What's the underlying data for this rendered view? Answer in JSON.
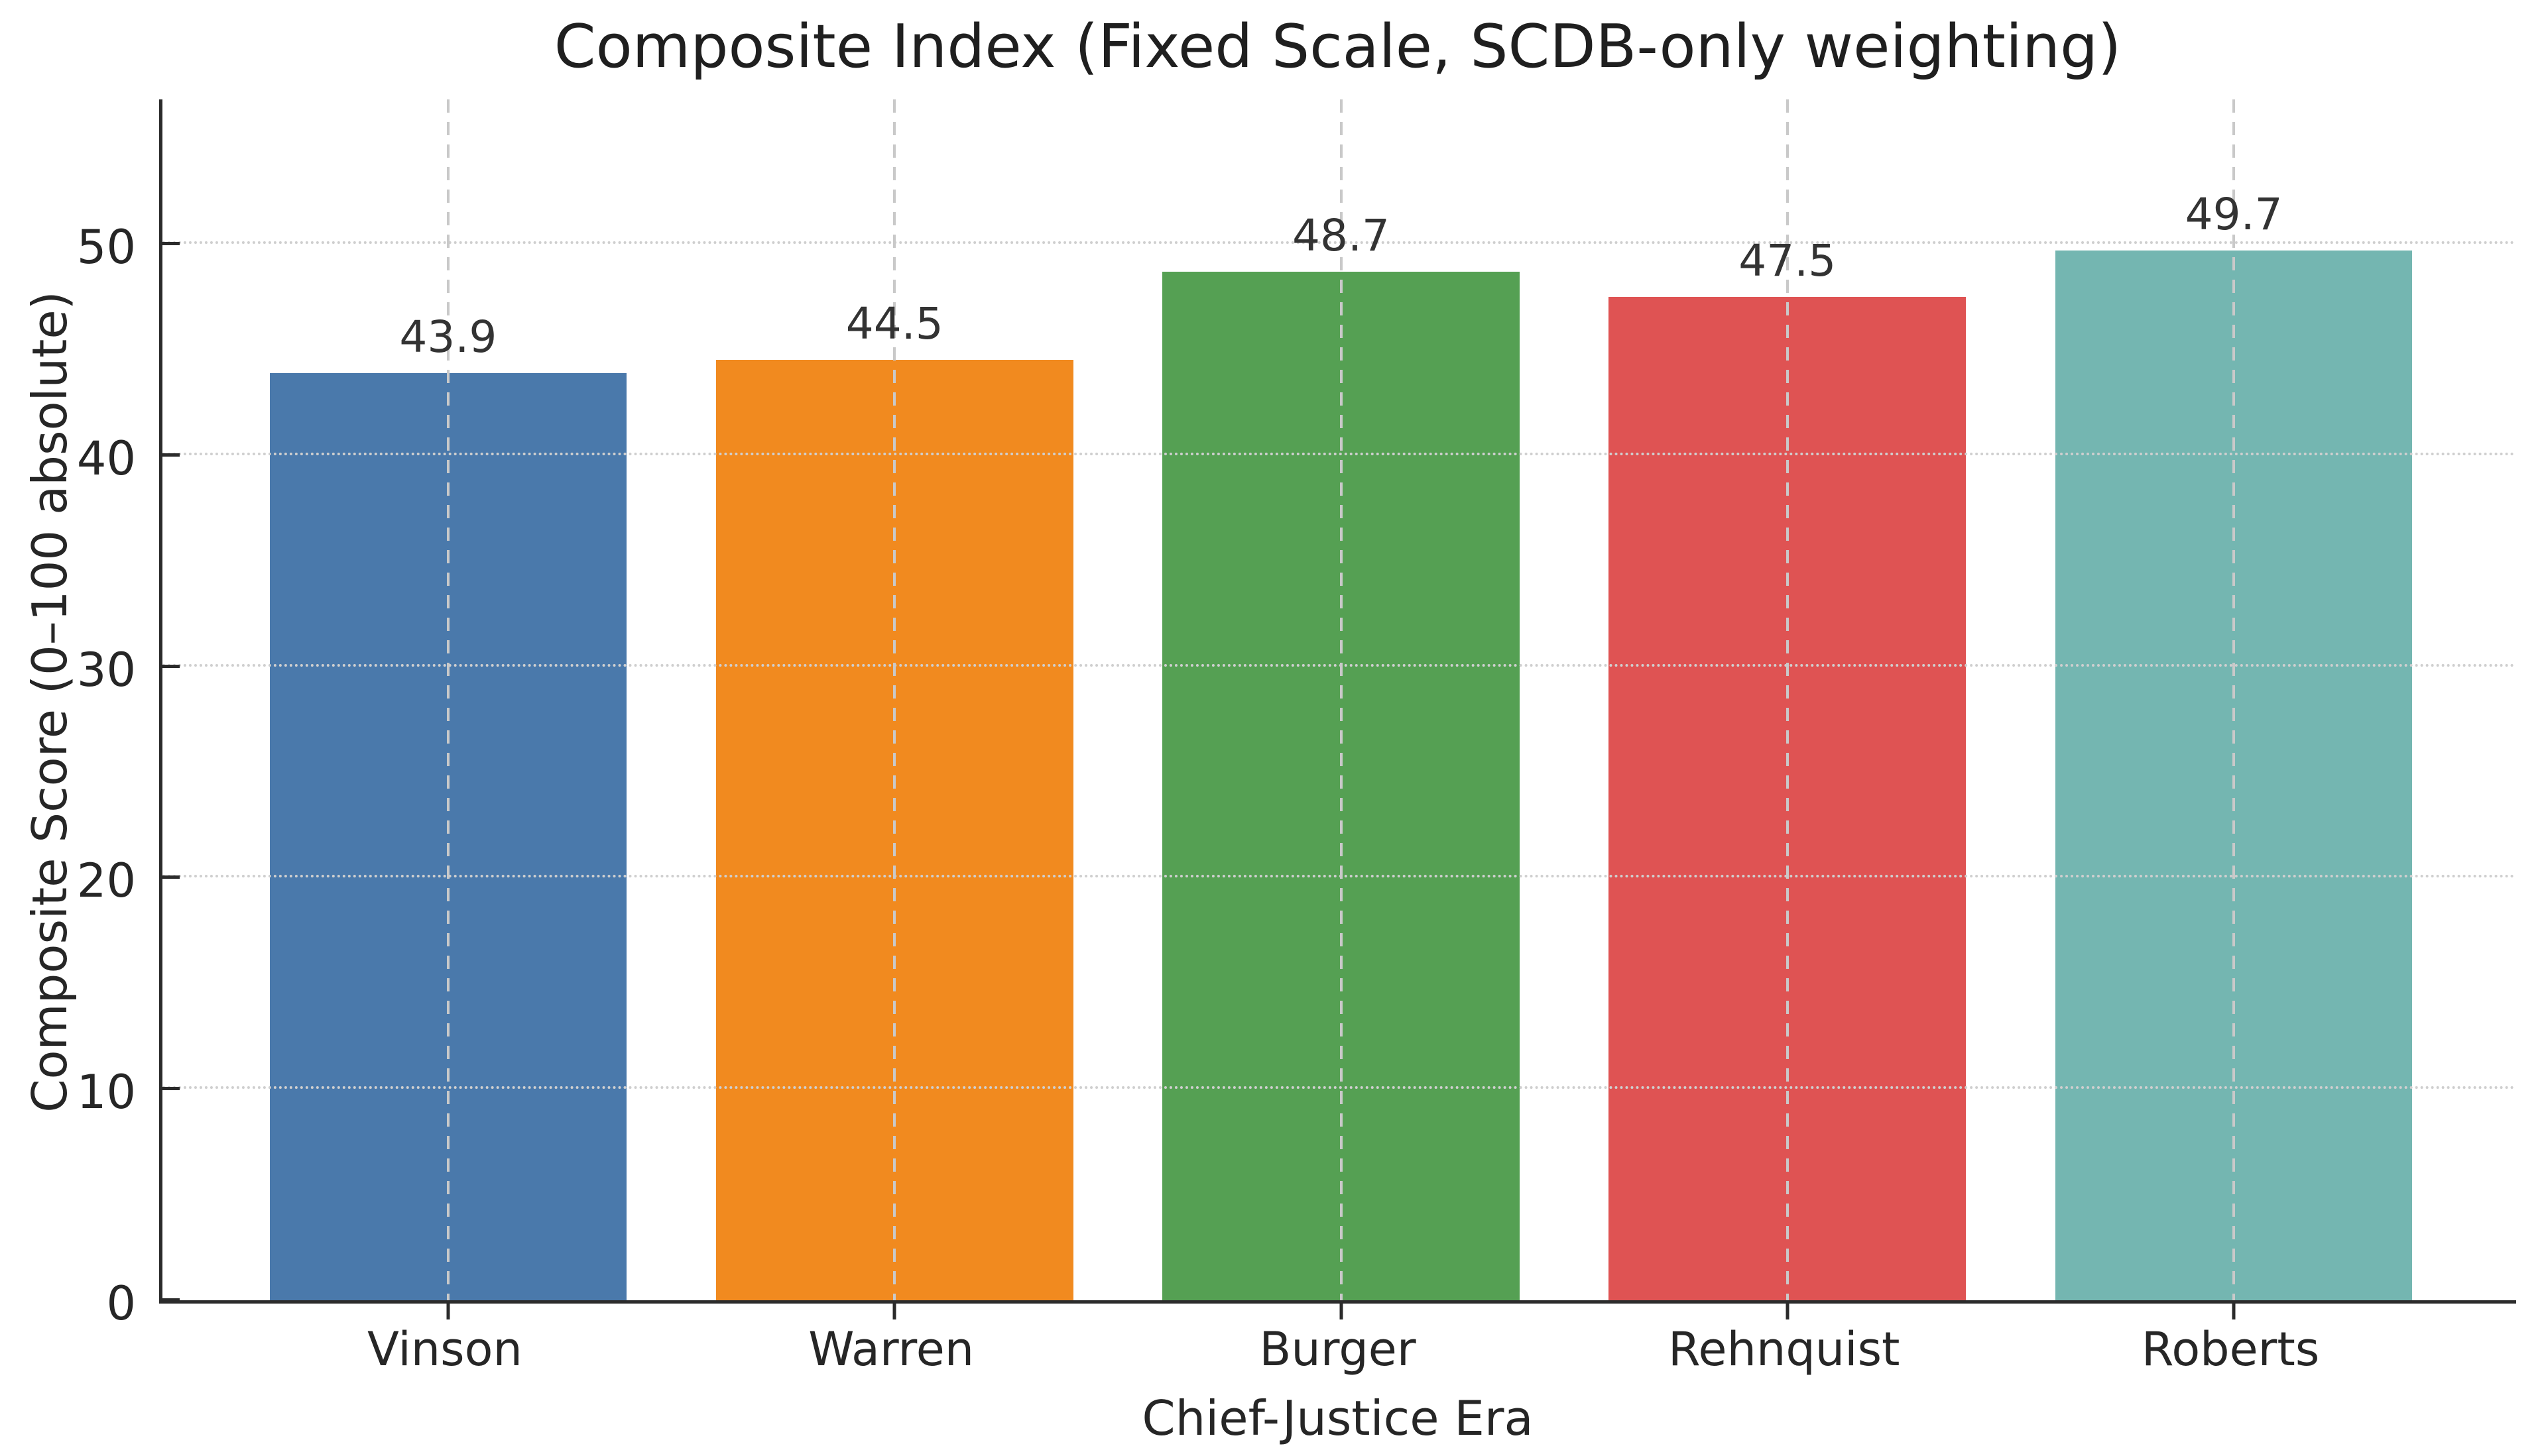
{
  "chart_data": {
    "type": "bar",
    "title": "Composite Index (Fixed Scale, SCDB-only weighting)",
    "xlabel": "Chief-Justice Era",
    "ylabel": "Composite Score (0–100 absolute)",
    "categories": [
      "Vinson",
      "Warren",
      "Burger",
      "Rehnquist",
      "Roberts"
    ],
    "values": [
      43.9,
      44.5,
      48.7,
      47.5,
      49.7
    ],
    "bar_labels": [
      "43.9",
      "44.5",
      "48.7",
      "47.5",
      "49.7"
    ],
    "bar_colors": [
      "#4a79ab",
      "#f18a1f",
      "#55a053",
      "#df5353",
      "#74b6b1"
    ],
    "ylim": [
      0,
      57
    ],
    "yticks": [
      0,
      10,
      20,
      30,
      40,
      50
    ],
    "grid": {
      "horizontal": "dotted at each y tick (drawn above bars)",
      "vertical": "dashed at each bar center (drawn above bars)"
    },
    "legend": "none",
    "colors": {
      "background": "#ffffff",
      "text": "#262626",
      "spine": "#2b2b2b",
      "grid": "#c9c9c9",
      "value_label": "#333333"
    }
  }
}
